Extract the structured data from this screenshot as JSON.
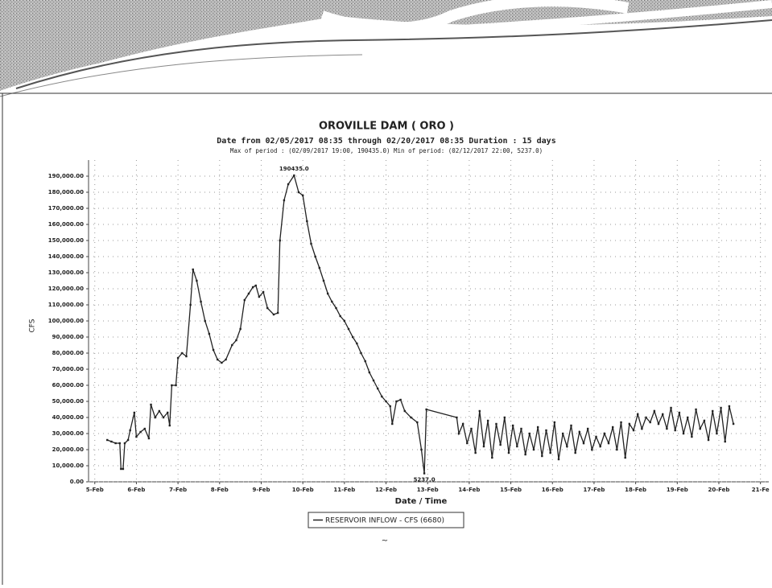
{
  "chart_data": {
    "type": "line",
    "title": "OROVILLE DAM ( ORO )",
    "subtitle": "Date from 02/05/2017 08:35 through 02/20/2017 08:35 Duration : 15 days",
    "period_note": "Max of period : (02/09/2017 19:00, 190435.0) Min of period: (02/12/2017 22:00, 5237.0)",
    "x_label": "Date / Time",
    "y_label": "CFS",
    "grid": true,
    "legend": "bottom",
    "xlim": [
      4.85,
      21.2
    ],
    "ylim": [
      0,
      200000
    ],
    "xticks": [
      {
        "value": 5,
        "label": "5-Feb"
      },
      {
        "value": 6,
        "label": "6-Feb"
      },
      {
        "value": 7,
        "label": "7-Feb"
      },
      {
        "value": 8,
        "label": "8-Feb"
      },
      {
        "value": 9,
        "label": "9-Feb"
      },
      {
        "value": 10,
        "label": "10-Feb"
      },
      {
        "value": 11,
        "label": "11-Feb"
      },
      {
        "value": 12,
        "label": "12-Feb"
      },
      {
        "value": 13,
        "label": "13-Feb"
      },
      {
        "value": 14,
        "label": "14-Feb"
      },
      {
        "value": 15,
        "label": "15-Feb"
      },
      {
        "value": 16,
        "label": "16-Feb"
      },
      {
        "value": 17,
        "label": "17-Feb"
      },
      {
        "value": 18,
        "label": "18-Feb"
      },
      {
        "value": 19,
        "label": "19-Feb"
      },
      {
        "value": 20,
        "label": "20-Feb"
      },
      {
        "value": 21,
        "label": "21-Fe"
      }
    ],
    "yticks": [
      {
        "value": 0,
        "label": "0.00"
      },
      {
        "value": 10000,
        "label": "10,000.00"
      },
      {
        "value": 20000,
        "label": "20,000.00"
      },
      {
        "value": 30000,
        "label": "30,000.00"
      },
      {
        "value": 40000,
        "label": "40,000.00"
      },
      {
        "value": 50000,
        "label": "50,000.00"
      },
      {
        "value": 60000,
        "label": "60,000.00"
      },
      {
        "value": 70000,
        "label": "70,000.00"
      },
      {
        "value": 80000,
        "label": "80,000.00"
      },
      {
        "value": 90000,
        "label": "90,000.00"
      },
      {
        "value": 100000,
        "label": "100,000.00"
      },
      {
        "value": 110000,
        "label": "110,000.00"
      },
      {
        "value": 120000,
        "label": "120,000.00"
      },
      {
        "value": 130000,
        "label": "130,000.00"
      },
      {
        "value": 140000,
        "label": "140,000.00"
      },
      {
        "value": 150000,
        "label": "150,000.00"
      },
      {
        "value": 160000,
        "label": "160,000.00"
      },
      {
        "value": 170000,
        "label": "170,000.00"
      },
      {
        "value": 180000,
        "label": "180,000.00"
      },
      {
        "value": 190000,
        "label": "190,000.00"
      }
    ],
    "x": [
      5.3,
      5.4,
      5.5,
      5.6,
      5.63,
      5.68,
      5.72,
      5.8,
      5.85,
      5.95,
      6.0,
      6.1,
      6.2,
      6.3,
      6.35,
      6.45,
      6.55,
      6.65,
      6.75,
      6.8,
      6.85,
      6.95,
      7.0,
      7.1,
      7.2,
      7.3,
      7.36,
      7.45,
      7.55,
      7.65,
      7.75,
      7.85,
      7.95,
      8.05,
      8.15,
      8.3,
      8.4,
      8.5,
      8.6,
      8.7,
      8.8,
      8.87,
      8.95,
      9.05,
      9.15,
      9.3,
      9.4,
      9.45,
      9.55,
      9.65,
      9.79,
      9.9,
      10.0,
      10.1,
      10.2,
      10.3,
      10.4,
      10.5,
      10.6,
      10.7,
      10.8,
      10.9,
      11.0,
      11.1,
      11.2,
      11.3,
      11.4,
      11.5,
      11.6,
      11.7,
      11.8,
      11.9,
      12.0,
      12.1,
      12.15,
      12.25,
      12.35,
      12.45,
      12.6,
      12.75,
      12.85,
      12.92,
      12.97,
      13.7,
      13.75,
      13.85,
      13.95,
      14.05,
      14.15,
      14.25,
      14.35,
      14.45,
      14.55,
      14.65,
      14.75,
      14.85,
      14.95,
      15.05,
      15.15,
      15.25,
      15.35,
      15.45,
      15.55,
      15.65,
      15.75,
      15.85,
      15.95,
      16.05,
      16.15,
      16.25,
      16.35,
      16.45,
      16.55,
      16.65,
      16.75,
      16.85,
      16.95,
      17.05,
      17.15,
      17.25,
      17.35,
      17.45,
      17.55,
      17.65,
      17.75,
      17.85,
      17.95,
      18.05,
      18.15,
      18.25,
      18.35,
      18.45,
      18.55,
      18.65,
      18.75,
      18.85,
      18.95,
      19.05,
      19.15,
      19.25,
      19.35,
      19.45,
      19.55,
      19.65,
      19.75,
      19.85,
      19.95,
      20.05,
      20.15,
      20.25,
      20.35
    ],
    "series": [
      {
        "name": "RESERVOIR INFLOW - CFS (6680)",
        "color": "#222222",
        "values": [
          26000,
          25000,
          24000,
          24000,
          8000,
          8000,
          24000,
          26000,
          32000,
          43000,
          28000,
          31000,
          33000,
          27000,
          48000,
          40000,
          44000,
          40000,
          43000,
          35000,
          60000,
          60000,
          77000,
          80000,
          78000,
          110000,
          132000,
          125000,
          112000,
          100000,
          92000,
          82000,
          76000,
          74000,
          76000,
          85000,
          88000,
          95000,
          113000,
          117000,
          121000,
          122000,
          115000,
          118000,
          108000,
          104000,
          105000,
          150000,
          175000,
          185000,
          190435,
          180000,
          178000,
          162000,
          148000,
          140000,
          133000,
          125000,
          117000,
          112000,
          108000,
          103000,
          100000,
          95000,
          90000,
          86000,
          80000,
          75000,
          68000,
          63000,
          58000,
          53000,
          50000,
          47000,
          36000,
          50000,
          51000,
          44000,
          40000,
          37000,
          20000,
          5237,
          45000,
          40000,
          30000,
          36000,
          24000,
          33000,
          18000,
          44000,
          22000,
          38000,
          15000,
          36000,
          23000,
          40000,
          18000,
          35000,
          22000,
          33000,
          17000,
          30000,
          20000,
          34000,
          16000,
          32000,
          18000,
          37000,
          14000,
          30000,
          22000,
          35000,
          18000,
          31000,
          24000,
          33000,
          20000,
          28000,
          22000,
          30000,
          24000,
          34000,
          20000,
          37000,
          15000,
          36000,
          32000,
          42000,
          33000,
          40000,
          37000,
          44000,
          36000,
          42000,
          33000,
          46000,
          32000,
          43000,
          30000,
          40000,
          28000,
          45000,
          33000,
          38000,
          26000,
          44000,
          30000,
          46000,
          25000,
          47000,
          36000
        ]
      }
    ],
    "annotations": [
      {
        "text": "190435.0",
        "x": 9.79,
        "y": 190435
      },
      {
        "text": "5237.0",
        "x": 12.92,
        "y": 5237
      }
    ]
  }
}
